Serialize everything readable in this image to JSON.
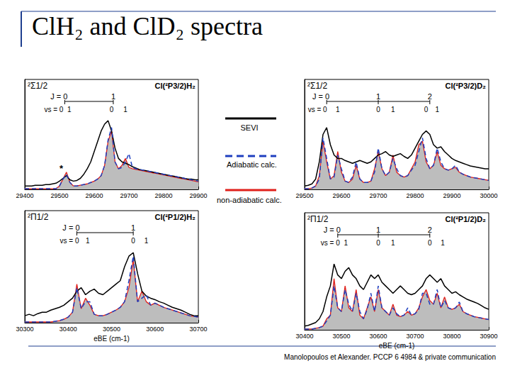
{
  "title": "ClH₂ and ClD₂ spectra",
  "citation": "Manolopoulos et Alexander. PCCP 6 4984 & private communication",
  "chart_data": [
    {
      "type": "line",
      "state": "²Σ1/2",
      "header": "Cl(²P3/2)H₂",
      "x": [
        29400,
        29410,
        29420,
        29430,
        29440,
        29450,
        29460,
        29470,
        29480,
        29490,
        29500,
        29510,
        29520,
        29530,
        29540,
        29550,
        29560,
        29570,
        29580,
        29590,
        29600,
        29610,
        29620,
        29630,
        29640,
        29650,
        29660,
        29670,
        29680,
        29690,
        29700,
        29710,
        29720,
        29730,
        29740,
        29750,
        29760,
        29770,
        29780,
        29790,
        29800,
        29810,
        29820,
        29830,
        29840,
        29850,
        29860,
        29870,
        29880,
        29890,
        29900
      ],
      "xlim": [
        29400,
        29900
      ],
      "xticks": [
        29400,
        29500,
        29600,
        29700,
        29800,
        29900
      ],
      "ylim": [
        0,
        1.6
      ],
      "tick_labels": "x",
      "grid": false,
      "series": [
        {
          "name": "SEVI",
          "color": "#000000",
          "line_style": "solid",
          "values": [
            0.05,
            0.05,
            0.05,
            0.06,
            0.06,
            0.06,
            0.07,
            0.07,
            0.08,
            0.09,
            0.12,
            0.16,
            0.2,
            0.14,
            0.12,
            0.13,
            0.16,
            0.22,
            0.3,
            0.4,
            0.55,
            0.7,
            0.85,
            0.95,
            1.0,
            0.85,
            0.6,
            0.45,
            0.4,
            0.38,
            0.36,
            0.33,
            0.31,
            0.29,
            0.28,
            0.27,
            0.26,
            0.25,
            0.24,
            0.23,
            0.22,
            0.21,
            0.2,
            0.19,
            0.18,
            0.17,
            0.16,
            0.15,
            0.15,
            0.14,
            0.14
          ]
        },
        {
          "name": "Adiabatic calc.",
          "color": "#1f3fbf",
          "line_style": "dashed",
          "values": [
            0.01,
            0.01,
            0.01,
            0.01,
            0.01,
            0.01,
            0.01,
            0.01,
            0.01,
            0.01,
            0.05,
            0.15,
            0.22,
            0.1,
            0.05,
            0.05,
            0.06,
            0.07,
            0.08,
            0.1,
            0.12,
            0.15,
            0.2,
            0.35,
            0.72,
            0.9,
            0.4,
            0.3,
            0.32,
            0.4,
            0.52,
            0.32,
            0.3,
            0.29,
            0.28,
            0.27,
            0.26,
            0.25,
            0.24,
            0.23,
            0.22,
            0.21,
            0.2,
            0.19,
            0.18,
            0.17,
            0.16,
            0.15,
            0.14,
            0.13,
            0.12
          ]
        },
        {
          "name": "non-adiabatic calc.",
          "color": "#e0201b",
          "line_style": "solid",
          "type": "area",
          "values": [
            0.01,
            0.01,
            0.01,
            0.01,
            0.01,
            0.01,
            0.01,
            0.01,
            0.01,
            0.01,
            0.05,
            0.15,
            0.25,
            0.1,
            0.05,
            0.05,
            0.06,
            0.07,
            0.08,
            0.1,
            0.12,
            0.15,
            0.2,
            0.35,
            0.7,
            0.85,
            0.4,
            0.3,
            0.35,
            0.45,
            0.32,
            0.3,
            0.29,
            0.28,
            0.27,
            0.26,
            0.25,
            0.24,
            0.23,
            0.22,
            0.21,
            0.2,
            0.19,
            0.18,
            0.17,
            0.16,
            0.15,
            0.14,
            0.13,
            0.12,
            0.11
          ]
        }
      ],
      "levels": {
        "J": [
          {
            "label": "J = 0",
            "x": 29515
          },
          {
            "label": "1",
            "x": 29655
          }
        ],
        "vs": [
          {
            "label": "vs = 0",
            "x": 29505
          },
          {
            "label": "1",
            "x": 29528
          },
          {
            "label": "0",
            "x": 29650
          },
          {
            "label": "1",
            "x": 29690
          }
        ]
      },
      "annotations": [
        {
          "text": "*",
          "x": 29505,
          "y": 0.24
        }
      ]
    },
    {
      "type": "line",
      "state": "²Σ1/2",
      "header": "Cl(²P3/2)D₂",
      "x": [
        29500,
        29510,
        29520,
        29530,
        29540,
        29550,
        29560,
        29570,
        29580,
        29590,
        29600,
        29610,
        29620,
        29630,
        29640,
        29650,
        29660,
        29670,
        29680,
        29690,
        29700,
        29710,
        29720,
        29730,
        29740,
        29750,
        29760,
        29770,
        29780,
        29790,
        29800,
        29810,
        29820,
        29830,
        29840,
        29850,
        29860,
        29870,
        29880,
        29890,
        29900,
        29910,
        29920,
        29930,
        29940,
        29950,
        29960,
        29970,
        29980,
        29990,
        30000
      ],
      "xlim": [
        29500,
        30000
      ],
      "xticks": [
        29500,
        29600,
        29700,
        29800,
        29900,
        30000
      ],
      "ylim": [
        0,
        1.6
      ],
      "tick_labels": "x",
      "grid": false,
      "series": [
        {
          "name": "SEVI",
          "color": "#000000",
          "line_style": "solid",
          "values": [
            0.05,
            0.06,
            0.08,
            0.15,
            0.4,
            0.8,
            0.9,
            0.65,
            0.5,
            0.45,
            0.45,
            0.42,
            0.4,
            0.38,
            0.4,
            0.42,
            0.4,
            0.38,
            0.4,
            0.45,
            0.5,
            0.52,
            0.55,
            0.5,
            0.48,
            0.5,
            0.52,
            0.48,
            0.45,
            0.5,
            0.6,
            0.7,
            0.8,
            0.85,
            0.8,
            0.65,
            0.6,
            0.62,
            0.55,
            0.5,
            0.45,
            0.42,
            0.4,
            0.38,
            0.36,
            0.34,
            0.33,
            0.32,
            0.31,
            0.3,
            0.3
          ]
        },
        {
          "name": "Adiabatic calc.",
          "color": "#1f3fbf",
          "line_style": "dashed",
          "values": [
            0.01,
            0.01,
            0.02,
            0.05,
            0.15,
            0.75,
            0.45,
            0.15,
            0.18,
            0.5,
            0.3,
            0.12,
            0.1,
            0.18,
            0.4,
            0.15,
            0.1,
            0.1,
            0.12,
            0.25,
            0.6,
            0.3,
            0.2,
            0.25,
            0.45,
            0.3,
            0.2,
            0.18,
            0.2,
            0.28,
            0.35,
            0.55,
            0.75,
            0.45,
            0.3,
            0.35,
            0.6,
            0.4,
            0.3,
            0.28,
            0.3,
            0.35,
            0.25,
            0.22,
            0.2,
            0.18,
            0.17,
            0.16,
            0.15,
            0.14,
            0.13
          ]
        },
        {
          "name": "non-adiabatic calc.",
          "color": "#e0201b",
          "line_style": "solid",
          "type": "area",
          "values": [
            0.01,
            0.01,
            0.02,
            0.05,
            0.2,
            0.7,
            0.4,
            0.15,
            0.2,
            0.55,
            0.25,
            0.12,
            0.1,
            0.15,
            0.35,
            0.15,
            0.1,
            0.1,
            0.12,
            0.3,
            0.55,
            0.3,
            0.2,
            0.25,
            0.5,
            0.25,
            0.2,
            0.18,
            0.2,
            0.3,
            0.4,
            0.65,
            0.7,
            0.4,
            0.3,
            0.35,
            0.55,
            0.35,
            0.3,
            0.28,
            0.3,
            0.32,
            0.25,
            0.22,
            0.2,
            0.18,
            0.17,
            0.16,
            0.15,
            0.14,
            0.13
          ]
        }
      ],
      "levels": {
        "J": [
          {
            "label": "J = 0",
            "x": 29560
          },
          {
            "label": "1",
            "x": 29700
          },
          {
            "label": "2",
            "x": 29840
          }
        ],
        "vs": [
          {
            "label": "vs = 0",
            "x": 29555
          },
          {
            "label": "1",
            "x": 29590
          },
          {
            "label": "0",
            "x": 29700
          },
          {
            "label": "1",
            "x": 29740
          },
          {
            "label": "0",
            "x": 29830
          },
          {
            "label": "1",
            "x": 29860
          }
        ]
      }
    },
    {
      "type": "line",
      "state": "²Π1/2",
      "header": "Cl(²P1/2)H₂",
      "xlabel": "eBE (cm-1)",
      "x": [
        30300,
        30310,
        30320,
        30330,
        30340,
        30350,
        30360,
        30370,
        30380,
        30390,
        30400,
        30410,
        30420,
        30430,
        30440,
        30450,
        30460,
        30470,
        30480,
        30490,
        30500,
        30510,
        30520,
        30530,
        30540,
        30550,
        30560,
        30570,
        30580,
        30590,
        30600,
        30610,
        30620,
        30630,
        30640,
        30650,
        30660,
        30670,
        30680,
        30690,
        30700
      ],
      "xlim": [
        30300,
        30700
      ],
      "xticks": [
        30300,
        30400,
        30500,
        30600,
        30700
      ],
      "ylim": [
        0,
        1.6
      ],
      "tick_labels": "x",
      "grid": false,
      "series": [
        {
          "name": "SEVI",
          "color": "#000000",
          "line_style": "solid",
          "values": [
            0.1,
            0.12,
            0.1,
            0.13,
            0.15,
            0.15,
            0.18,
            0.2,
            0.22,
            0.25,
            0.3,
            0.35,
            0.45,
            0.5,
            0.4,
            0.45,
            0.48,
            0.42,
            0.4,
            0.45,
            0.5,
            0.55,
            0.6,
            0.8,
            0.95,
            1.0,
            0.7,
            0.45,
            0.38,
            0.35,
            0.33,
            0.3,
            0.28,
            0.25,
            0.22,
            0.2,
            0.18,
            0.15,
            0.12,
            0.1,
            0.1
          ]
        },
        {
          "name": "Adiabatic calc.",
          "color": "#1f3fbf",
          "line_style": "dashed",
          "values": [
            0.01,
            0.01,
            0.01,
            0.01,
            0.01,
            0.01,
            0.01,
            0.02,
            0.03,
            0.05,
            0.08,
            0.15,
            0.5,
            0.2,
            0.3,
            0.3,
            0.12,
            0.1,
            0.1,
            0.12,
            0.15,
            0.18,
            0.22,
            0.3,
            0.6,
            0.95,
            0.3,
            0.35,
            0.4,
            0.25,
            0.28,
            0.25,
            0.22,
            0.2,
            0.18,
            0.16,
            0.14,
            0.12,
            0.1,
            0.09,
            0.08
          ]
        },
        {
          "name": "non-adiabatic calc.",
          "color": "#e0201b",
          "line_style": "solid",
          "type": "area",
          "values": [
            0.01,
            0.01,
            0.01,
            0.01,
            0.01,
            0.01,
            0.01,
            0.02,
            0.03,
            0.05,
            0.08,
            0.15,
            0.55,
            0.2,
            0.35,
            0.25,
            0.12,
            0.1,
            0.1,
            0.12,
            0.15,
            0.18,
            0.22,
            0.3,
            0.5,
            0.9,
            0.3,
            0.45,
            0.3,
            0.25,
            0.28,
            0.25,
            0.22,
            0.2,
            0.18,
            0.16,
            0.14,
            0.12,
            0.1,
            0.09,
            0.08
          ]
        }
      ],
      "levels": {
        "J": [
          {
            "label": "J = 0",
            "x": 30420
          },
          {
            "label": "1",
            "x": 30550
          }
        ],
        "vs": [
          {
            "label": "vs = 0",
            "x": 30420
          },
          {
            "label": "1",
            "x": 30445
          },
          {
            "label": "0",
            "x": 30550
          },
          {
            "label": "1",
            "x": 30580
          }
        ]
      }
    },
    {
      "type": "line",
      "state": "²Π1/2",
      "header": "Cl(²P1/2)D₂",
      "xlabel": "eBE (cm-1)",
      "x": [
        30400,
        30410,
        30420,
        30430,
        30440,
        30450,
        30460,
        30470,
        30480,
        30490,
        30500,
        30510,
        30520,
        30530,
        30540,
        30550,
        30560,
        30570,
        30580,
        30590,
        30600,
        30610,
        30620,
        30630,
        30640,
        30650,
        30660,
        30670,
        30680,
        30690,
        30700,
        30710,
        30720,
        30730,
        30740,
        30750,
        30760,
        30770,
        30780,
        30790,
        30800,
        30810,
        30820,
        30830,
        30840,
        30850,
        30860,
        30870,
        30880,
        30890,
        30900
      ],
      "xlim": [
        30400,
        30900
      ],
      "xticks": [
        30400,
        30500,
        30600,
        30700,
        30800,
        30900
      ],
      "ylim": [
        0,
        1.6
      ],
      "tick_labels": "x",
      "grid": false,
      "series": [
        {
          "name": "SEVI",
          "color": "#000000",
          "line_style": "solid",
          "values": [
            0.05,
            0.06,
            0.08,
            0.1,
            0.15,
            0.25,
            0.45,
            0.6,
            0.9,
            0.75,
            0.7,
            0.8,
            0.85,
            0.75,
            0.7,
            0.6,
            0.55,
            0.65,
            0.75,
            0.7,
            0.75,
            0.65,
            0.6,
            0.55,
            0.5,
            0.55,
            0.6,
            0.55,
            0.5,
            0.48,
            0.5,
            0.55,
            0.6,
            0.7,
            0.75,
            0.7,
            0.65,
            0.7,
            0.6,
            0.55,
            0.5,
            0.52,
            0.48,
            0.45,
            0.42,
            0.4,
            0.38,
            0.36,
            0.33,
            0.3,
            0.28
          ]
        },
        {
          "name": "Adiabatic calc.",
          "color": "#1f3fbf",
          "line_style": "dashed",
          "values": [
            0.01,
            0.01,
            0.01,
            0.02,
            0.03,
            0.05,
            0.12,
            0.2,
            0.6,
            0.3,
            0.25,
            0.55,
            0.35,
            0.25,
            0.5,
            0.25,
            0.15,
            0.28,
            0.5,
            0.25,
            0.6,
            0.3,
            0.25,
            0.2,
            0.3,
            0.22,
            0.18,
            0.2,
            0.3,
            0.2,
            0.22,
            0.28,
            0.5,
            0.5,
            0.35,
            0.35,
            0.55,
            0.3,
            0.4,
            0.3,
            0.28,
            0.3,
            0.38,
            0.25,
            0.22,
            0.2,
            0.18,
            0.17,
            0.16,
            0.15,
            0.14
          ]
        },
        {
          "name": "non-adiabatic calc.",
          "color": "#e0201b",
          "line_style": "solid",
          "type": "area",
          "values": [
            0.01,
            0.01,
            0.01,
            0.02,
            0.03,
            0.05,
            0.15,
            0.2,
            0.7,
            0.3,
            0.25,
            0.6,
            0.3,
            0.25,
            0.55,
            0.2,
            0.15,
            0.3,
            0.45,
            0.25,
            0.55,
            0.3,
            0.25,
            0.2,
            0.35,
            0.2,
            0.18,
            0.2,
            0.25,
            0.2,
            0.22,
            0.3,
            0.45,
            0.55,
            0.4,
            0.35,
            0.5,
            0.3,
            0.45,
            0.3,
            0.28,
            0.3,
            0.35,
            0.25,
            0.22,
            0.2,
            0.18,
            0.17,
            0.16,
            0.15,
            0.14
          ]
        }
      ],
      "levels": {
        "J": [
          {
            "label": "J = 0",
            "x": 30490
          },
          {
            "label": "1",
            "x": 30600
          },
          {
            "label": "2",
            "x": 30740
          }
        ],
        "vs": [
          {
            "label": "vs = 0",
            "x": 30490
          },
          {
            "label": "1",
            "x": 30512
          },
          {
            "label": "0",
            "x": 30600
          },
          {
            "label": "1",
            "x": 30640
          },
          {
            "label": "0",
            "x": 30740
          },
          {
            "label": "1",
            "x": 30775
          }
        ]
      }
    }
  ]
}
